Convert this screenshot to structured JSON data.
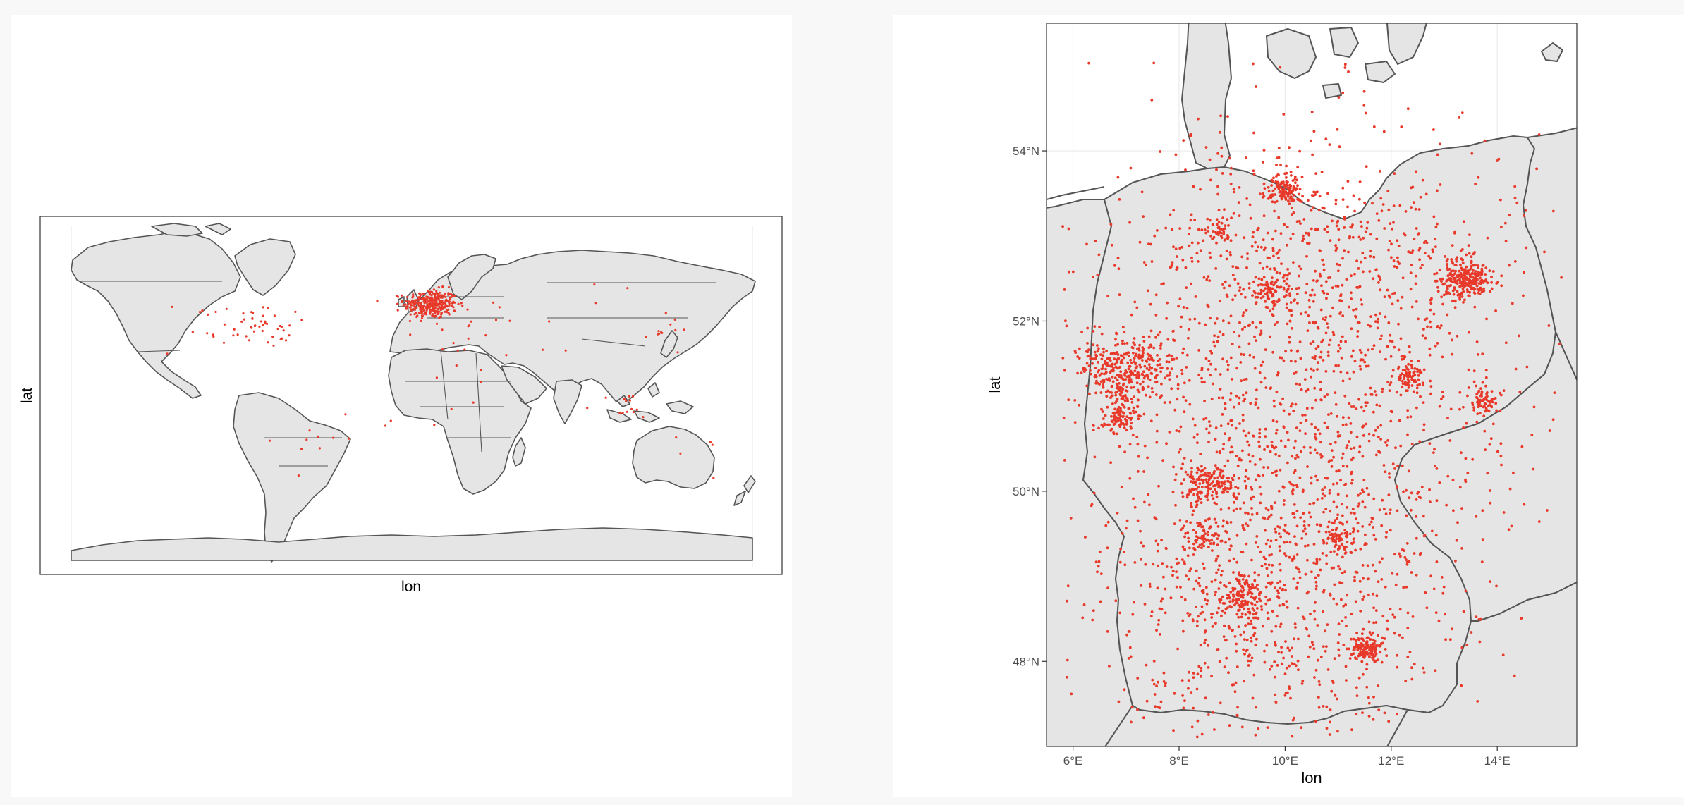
{
  "left_map": {
    "xlabel": "lon",
    "ylabel": "lat",
    "extent": {
      "lon": [
        -180,
        180
      ],
      "lat": [
        -90,
        90
      ]
    },
    "show_tick_labels": false,
    "grid": true,
    "point_color": "#e8392a",
    "land_fill": "#e5e5e5",
    "border_color": "#555555",
    "point_clusters": [
      {
        "lon": 10,
        "lat": 51,
        "spread": [
          7,
          4
        ],
        "n": 320
      },
      {
        "lon": -77,
        "lat": 39,
        "spread": [
          8,
          4
        ],
        "n": 30
      },
      {
        "lon": -100,
        "lat": 38,
        "spread": [
          18,
          8
        ],
        "n": 25
      },
      {
        "lon": 135,
        "lat": 36,
        "spread": [
          6,
          4
        ],
        "n": 12
      },
      {
        "lon": 110,
        "lat": -5,
        "spread": [
          10,
          4
        ],
        "n": 14
      },
      {
        "lon": 30,
        "lat": 35,
        "spread": [
          14,
          8
        ],
        "n": 14
      },
      {
        "lon": -50,
        "lat": -20,
        "spread": [
          12,
          10
        ],
        "n": 10
      },
      {
        "lon": 20,
        "lat": -10,
        "spread": [
          15,
          15
        ],
        "n": 8
      },
      {
        "lon": 60,
        "lat": 40,
        "spread": [
          25,
          10
        ],
        "n": 10
      },
      {
        "lon": 145,
        "lat": -32,
        "spread": [
          8,
          6
        ],
        "n": 5
      }
    ]
  },
  "right_map": {
    "xlabel": "lon",
    "ylabel": "lat",
    "extent": {
      "lon": [
        5.5,
        15.5
      ],
      "lat": [
        47,
        55.5
      ]
    },
    "x_ticks": [
      {
        "value": 6,
        "label": "6°E"
      },
      {
        "value": 8,
        "label": "8°E"
      },
      {
        "value": 10,
        "label": "10°E"
      },
      {
        "value": 12,
        "label": "12°E"
      },
      {
        "value": 14,
        "label": "14°E"
      }
    ],
    "y_ticks": [
      {
        "value": 48,
        "label": "48°N"
      },
      {
        "value": 50,
        "label": "50°N"
      },
      {
        "value": 52,
        "label": "52°N"
      },
      {
        "value": 54,
        "label": "54°N"
      }
    ],
    "grid": true,
    "point_color": "#e8392a",
    "land_fill": "#e5e5e5",
    "border_color": "#555555",
    "point_clusters": [
      {
        "lon": 13.4,
        "lat": 52.5,
        "spread": [
          0.25,
          0.12
        ],
        "n": 260
      },
      {
        "lon": 10.0,
        "lat": 53.55,
        "spread": [
          0.15,
          0.08
        ],
        "n": 110
      },
      {
        "lon": 7.0,
        "lat": 51.45,
        "spread": [
          0.45,
          0.18
        ],
        "n": 330
      },
      {
        "lon": 6.9,
        "lat": 50.95,
        "spread": [
          0.2,
          0.15
        ],
        "n": 120
      },
      {
        "lon": 8.65,
        "lat": 50.1,
        "spread": [
          0.3,
          0.12
        ],
        "n": 170
      },
      {
        "lon": 11.55,
        "lat": 48.15,
        "spread": [
          0.15,
          0.08
        ],
        "n": 130
      },
      {
        "lon": 9.2,
        "lat": 48.75,
        "spread": [
          0.2,
          0.12
        ],
        "n": 120
      },
      {
        "lon": 13.75,
        "lat": 51.05,
        "spread": [
          0.15,
          0.08
        ],
        "n": 70
      },
      {
        "lon": 12.35,
        "lat": 51.35,
        "spread": [
          0.15,
          0.08
        ],
        "n": 70
      },
      {
        "lon": 9.75,
        "lat": 52.35,
        "spread": [
          0.2,
          0.1
        ],
        "n": 70
      },
      {
        "lon": 11.05,
        "lat": 49.45,
        "spread": [
          0.15,
          0.1
        ],
        "n": 60
      },
      {
        "lon": 8.5,
        "lat": 49.45,
        "spread": [
          0.2,
          0.12
        ],
        "n": 60
      },
      {
        "lon": 8.8,
        "lat": 53.08,
        "spread": [
          0.15,
          0.08
        ],
        "n": 35
      },
      {
        "lon": 10.2,
        "lat": 50.5,
        "spread": [
          2.0,
          1.6
        ],
        "n": 1500
      },
      {
        "lon": 10.5,
        "lat": 52.8,
        "spread": [
          1.8,
          0.8
        ],
        "n": 500
      },
      {
        "lon": 9.5,
        "lat": 48.5,
        "spread": [
          1.6,
          0.7
        ],
        "n": 400
      }
    ]
  }
}
